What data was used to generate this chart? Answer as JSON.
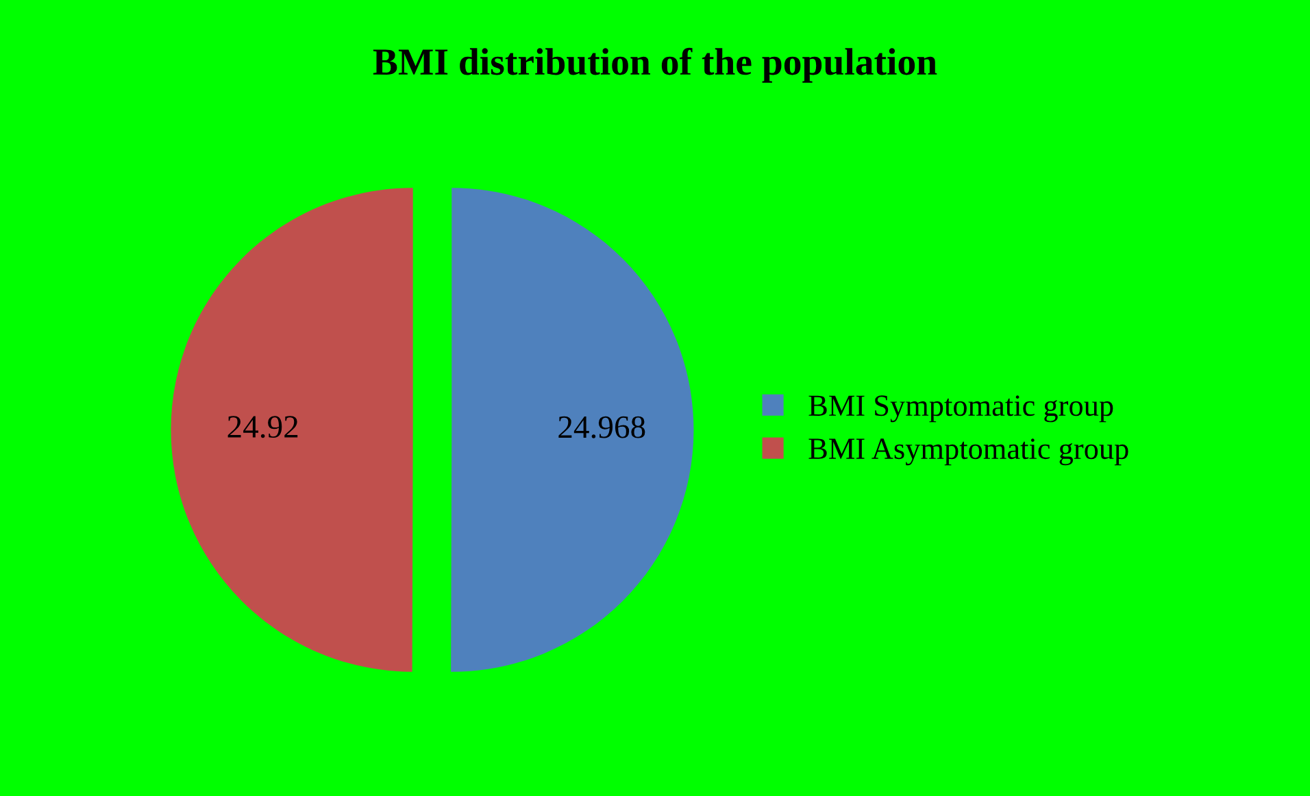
{
  "chart_data": {
    "type": "pie",
    "title": "BMI distribution of the population",
    "categories": [
      "BMI Symptomatic group",
      "BMI Asymptomatic group"
    ],
    "values": [
      24.968,
      24.92
    ],
    "colors": [
      "#4f81bd",
      "#c0504d"
    ],
    "data_labels": true,
    "legend": "right"
  }
}
